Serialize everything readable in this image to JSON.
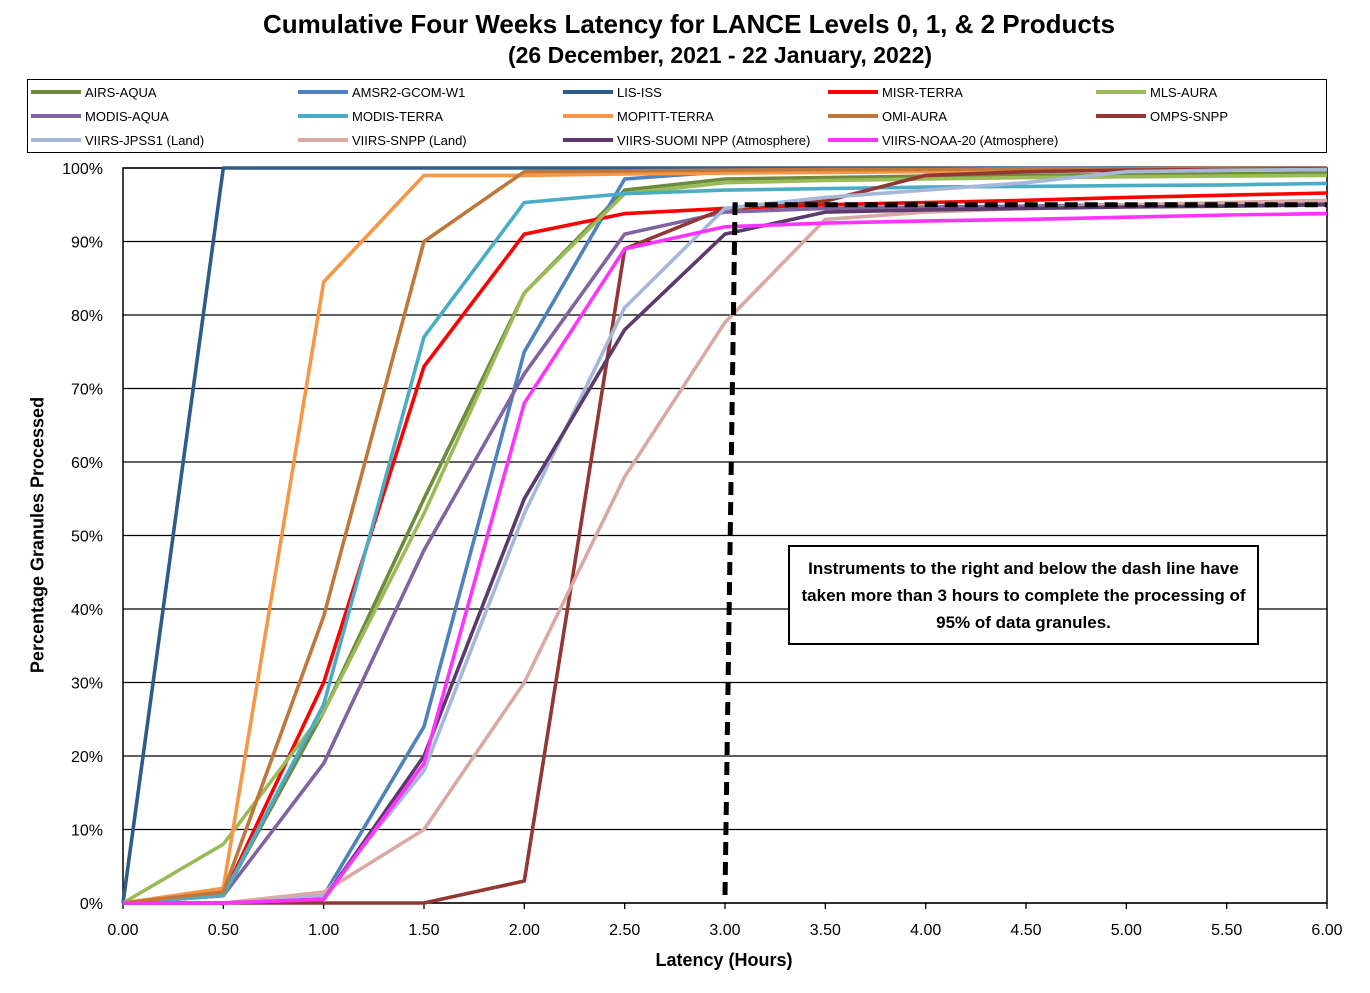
{
  "chart_data": {
    "type": "line",
    "title": "Cumulative Four Weeks Latency  for LANCE Levels 0, 1, & 2 Products",
    "subtitle": "(26 December, 2021  -  22 January, 2022)",
    "xlabel": "Latency (Hours)",
    "ylabel": "Percentage Granules Processed",
    "xlim": [
      0,
      6
    ],
    "ylim": [
      0,
      100
    ],
    "x_ticks": [
      "0.00",
      "0.50",
      "1.00",
      "1.50",
      "2.00",
      "2.50",
      "3.00",
      "3.50",
      "4.00",
      "4.50",
      "5.00",
      "5.50",
      "6.00"
    ],
    "y_ticks": [
      "0%",
      "10%",
      "20%",
      "30%",
      "40%",
      "50%",
      "60%",
      "70%",
      "80%",
      "90%",
      "100%"
    ],
    "grid": "horizontal",
    "legend_position": "top",
    "x": [
      0,
      0.5,
      1.0,
      1.5,
      2.0,
      2.5,
      3.0,
      3.5,
      4.0,
      4.5,
      5.0,
      5.5,
      6.0
    ],
    "series": [
      {
        "name": "AIRS-AQUA",
        "color": "#6E8B3D",
        "values": [
          0,
          1,
          26,
          55,
          83,
          97,
          98.5,
          98.7,
          98.9,
          99,
          99.1,
          99.2,
          99.3
        ]
      },
      {
        "name": "AMSR2-GCOM-W1",
        "color": "#4F81BD",
        "values": [
          0,
          0,
          1,
          24,
          75,
          98.5,
          99.5,
          99.7,
          99.8,
          99.9,
          100,
          100,
          100
        ]
      },
      {
        "name": "LIS-ISS",
        "color": "#2E5C8A",
        "values": [
          0,
          100,
          100,
          100,
          100,
          100,
          100,
          100,
          100,
          100,
          100,
          100,
          100
        ]
      },
      {
        "name": "MISR-TERRA",
        "color": "#FF0000",
        "values": [
          0,
          1,
          30,
          73,
          91,
          93.8,
          94.5,
          95,
          95.3,
          95.6,
          96,
          96.3,
          96.6
        ]
      },
      {
        "name": "MLS-AURA",
        "color": "#9BBB59",
        "values": [
          0,
          8,
          26,
          53,
          83,
          96.5,
          98,
          98.3,
          98.5,
          98.7,
          98.8,
          98.9,
          99
        ]
      },
      {
        "name": "MODIS-AQUA",
        "color": "#8064A2",
        "values": [
          0,
          1,
          19,
          48,
          72,
          91,
          94,
          94.5,
          94.7,
          94.8,
          95,
          95.1,
          95.2
        ]
      },
      {
        "name": "MODIS-TERRA",
        "color": "#4BACC6",
        "values": [
          0,
          1,
          27,
          77,
          95.3,
          96.5,
          97,
          97.2,
          97.4,
          97.5,
          97.6,
          97.7,
          97.9
        ]
      },
      {
        "name": "MOPITT-TERRA",
        "color": "#F79646",
        "values": [
          0,
          2,
          84.5,
          99,
          99,
          99.2,
          99.3,
          99.4,
          99.5,
          99.6,
          99.7,
          99.8,
          99.9
        ]
      },
      {
        "name": "OMI-AURA",
        "color": "#C0783A",
        "values": [
          0,
          1.5,
          39,
          90,
          99.5,
          99.6,
          99.7,
          99.8,
          99.8,
          99.9,
          99.9,
          100,
          100
        ]
      },
      {
        "name": "OMPS-SNPP",
        "color": "#943634",
        "values": [
          0,
          0,
          0,
          0,
          3,
          89,
          94.5,
          95.5,
          99,
          99.5,
          99.7,
          99.8,
          99.9
        ]
      },
      {
        "name": "VIIRS-JPSS1 (Land)",
        "color": "#A5B8D8",
        "values": [
          0,
          0,
          1,
          18,
          53,
          81,
          94.5,
          96,
          97,
          98,
          99.5,
          99.7,
          99.8
        ]
      },
      {
        "name": "VIIRS-SNPP (Land)",
        "color": "#D9A9A4",
        "values": [
          0,
          0,
          1.5,
          10,
          30,
          58,
          79,
          93,
          94,
          94.5,
          95,
          95.3,
          95.6
        ]
      },
      {
        "name": "VIIRS-SUOMI NPP (Atmosphere)",
        "color": "#5C3A6E",
        "values": [
          0,
          0,
          0.5,
          20,
          55,
          78,
          91,
          94,
          94.3,
          94.5,
          94.7,
          94.8,
          95
        ]
      },
      {
        "name": "VIIRS-NOAA-20 (Atmosphere)",
        "color": "#FF33FF",
        "values": [
          0,
          0,
          0.5,
          19,
          68,
          89,
          92,
          92.5,
          92.8,
          93,
          93.3,
          93.6,
          93.8
        ]
      }
    ],
    "threshold_line": {
      "x_vertical": [
        3.0,
        3.05
      ],
      "y_horizontal": 95,
      "style": "dashed"
    },
    "annotation": "Instruments to the right and below the dash line have taken more than 3 hours to complete the processing of 95% of data granules."
  }
}
